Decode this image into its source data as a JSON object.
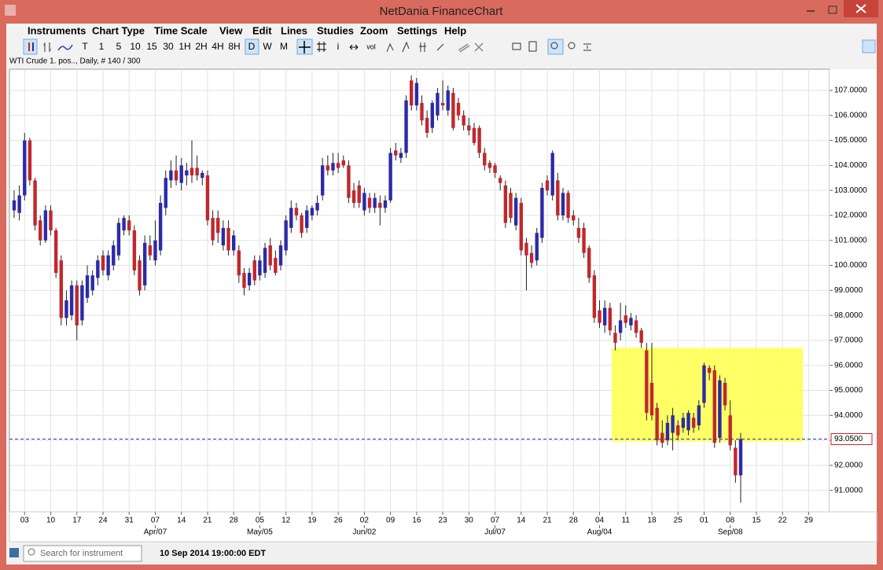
{
  "window": {
    "title": "NetDania FinanceChart"
  },
  "menu": [
    "Instruments",
    "Chart Type",
    "Time Scale",
    "View",
    "Edit",
    "Lines",
    "Studies",
    "Zoom",
    "Settings",
    "Help"
  ],
  "toolbar": {
    "timescale": [
      "T",
      "1",
      "5",
      "10",
      "15",
      "30",
      "1H",
      "2H",
      "4H",
      "8H",
      "D",
      "W",
      "M"
    ],
    "tools": [
      "i",
      "vol"
    ]
  },
  "chart_info": "WTI Crude 1. pos.., Daily, # 140 / 300",
  "search_placeholder": "Search for instrument",
  "status": "10 Sep 2014 19:00:00 EDT",
  "chart_data": {
    "type": "candlestick",
    "up_color": "#2b2ba8",
    "down_color": "#c0282c",
    "grid": true,
    "xlim": [
      -0.9,
      156
    ],
    "ylim": [
      90.14,
      107.85
    ],
    "yticks": [
      {
        "value": 91,
        "label": "91.0000"
      },
      {
        "value": 92,
        "label": "92.0000"
      },
      {
        "value": 93,
        "label": "93.0000"
      },
      {
        "value": 94,
        "label": "94.0000"
      },
      {
        "value": 95,
        "label": "95.0000"
      },
      {
        "value": 96,
        "label": "96.0000"
      },
      {
        "value": 97,
        "label": "97.0000"
      },
      {
        "value": 98,
        "label": "98.0000"
      },
      {
        "value": 99,
        "label": "99.0000"
      },
      {
        "value": 100,
        "label": "100.0000"
      },
      {
        "value": 101,
        "label": "101.0000"
      },
      {
        "value": 102,
        "label": "102.0000"
      },
      {
        "value": 103,
        "label": "103.0000"
      },
      {
        "value": 104,
        "label": "104.0000"
      },
      {
        "value": 105,
        "label": "105.0000"
      },
      {
        "value": 106,
        "label": "106.0000"
      },
      {
        "value": 107,
        "label": "107.0000"
      }
    ],
    "xticks": [
      {
        "value": 2,
        "label": "03"
      },
      {
        "value": 7,
        "label": "10"
      },
      {
        "value": 12,
        "label": "17"
      },
      {
        "value": 17,
        "label": "24"
      },
      {
        "value": 22,
        "label": "31"
      },
      {
        "value": 27,
        "label": "07"
      },
      {
        "value": 32,
        "label": "14"
      },
      {
        "value": 37,
        "label": "21"
      },
      {
        "value": 42,
        "label": "28"
      },
      {
        "value": 47,
        "label": "05"
      },
      {
        "value": 52,
        "label": "12"
      },
      {
        "value": 57,
        "label": "19"
      },
      {
        "value": 62,
        "label": "26"
      },
      {
        "value": 67,
        "label": "02"
      },
      {
        "value": 72,
        "label": "09"
      },
      {
        "value": 77,
        "label": "16"
      },
      {
        "value": 82,
        "label": "23"
      },
      {
        "value": 87,
        "label": "30"
      },
      {
        "value": 92,
        "label": "07"
      },
      {
        "value": 97,
        "label": "14"
      },
      {
        "value": 102,
        "label": "21"
      },
      {
        "value": 107,
        "label": "28"
      },
      {
        "value": 112,
        "label": "04"
      },
      {
        "value": 117,
        "label": "11"
      },
      {
        "value": 122,
        "label": "18"
      },
      {
        "value": 127,
        "label": "25"
      },
      {
        "value": 132,
        "label": "01"
      },
      {
        "value": 137,
        "label": "08"
      },
      {
        "value": 142,
        "label": "15"
      },
      {
        "value": 147,
        "label": "22"
      },
      {
        "value": 152,
        "label": "29"
      }
    ],
    "month_ticks": [
      {
        "value": 27,
        "label": "Apr/07"
      },
      {
        "value": 47,
        "label": "May/05"
      },
      {
        "value": 67,
        "label": "Jun/02"
      },
      {
        "value": 92,
        "label": "Jul/07"
      },
      {
        "value": 112,
        "label": "Aug/04"
      },
      {
        "value": 137,
        "label": "Sep/08"
      }
    ],
    "last_price": {
      "value": 93.05,
      "label": "93.0500"
    },
    "highlight": {
      "xlim": [
        114.3,
        150.9
      ],
      "ylim": [
        92.95,
        96.7
      ]
    },
    "ohlc": [
      [
        102.2,
        103.0,
        101.9,
        102.6
      ],
      [
        102.1,
        103.2,
        101.8,
        102.8
      ],
      [
        102.8,
        105.3,
        102.6,
        105.0
      ],
      [
        105.0,
        105.1,
        103.2,
        103.4
      ],
      [
        103.4,
        103.5,
        101.4,
        101.6
      ],
      [
        101.8,
        102.0,
        100.8,
        101.0
      ],
      [
        101.0,
        102.4,
        100.9,
        102.2
      ],
      [
        102.2,
        102.4,
        101.2,
        101.4
      ],
      [
        101.4,
        101.5,
        99.5,
        99.7
      ],
      [
        100.2,
        100.4,
        97.6,
        97.9
      ],
      [
        97.9,
        99.0,
        97.6,
        98.6
      ],
      [
        98.0,
        99.4,
        97.8,
        99.2
      ],
      [
        99.2,
        99.4,
        97.0,
        97.6
      ],
      [
        97.8,
        99.4,
        97.6,
        99.2
      ],
      [
        98.7,
        100.0,
        98.5,
        99.6
      ],
      [
        99.0,
        99.8,
        98.8,
        99.6
      ],
      [
        99.5,
        100.4,
        99.2,
        100.2
      ],
      [
        100.4,
        100.6,
        99.6,
        99.8
      ],
      [
        99.6,
        100.6,
        99.4,
        100.4
      ],
      [
        100.0,
        101.0,
        99.8,
        100.8
      ],
      [
        100.4,
        101.9,
        100.2,
        101.7
      ],
      [
        101.4,
        102.0,
        101.2,
        101.9
      ],
      [
        101.8,
        102.0,
        101.2,
        101.4
      ],
      [
        101.4,
        101.6,
        99.6,
        99.8
      ],
      [
        100.2,
        100.4,
        98.8,
        99.0
      ],
      [
        99.2,
        101.2,
        99.0,
        100.9
      ],
      [
        100.8,
        101.2,
        100.2,
        100.4
      ],
      [
        100.2,
        101.8,
        100.0,
        101.0
      ],
      [
        100.6,
        102.8,
        100.4,
        102.5
      ],
      [
        102.3,
        103.8,
        102.0,
        103.5
      ],
      [
        103.4,
        104.2,
        103.1,
        103.8
      ],
      [
        103.8,
        104.4,
        103.2,
        103.4
      ],
      [
        103.3,
        104.3,
        103.0,
        104.0
      ],
      [
        103.6,
        104.1,
        103.2,
        103.8
      ],
      [
        103.9,
        105.0,
        103.3,
        103.6
      ],
      [
        103.9,
        104.4,
        103.4,
        103.6
      ],
      [
        103.5,
        103.8,
        103.2,
        103.7
      ],
      [
        103.6,
        103.8,
        101.6,
        101.8
      ],
      [
        101.9,
        102.2,
        100.8,
        101.0
      ],
      [
        101.9,
        102.2,
        100.9,
        101.3
      ],
      [
        100.8,
        101.8,
        100.6,
        101.5
      ],
      [
        101.5,
        101.8,
        100.4,
        100.6
      ],
      [
        100.6,
        101.4,
        100.4,
        101.2
      ],
      [
        100.6,
        100.8,
        99.3,
        99.6
      ],
      [
        99.7,
        99.9,
        98.8,
        99.1
      ],
      [
        99.2,
        99.9,
        99.0,
        99.7
      ],
      [
        100.2,
        100.4,
        99.2,
        99.4
      ],
      [
        99.6,
        100.4,
        99.4,
        100.2
      ],
      [
        99.7,
        100.9,
        99.5,
        100.7
      ],
      [
        100.8,
        101.1,
        99.8,
        100.0
      ],
      [
        100.3,
        100.6,
        99.6,
        99.7
      ],
      [
        100.0,
        101.0,
        99.8,
        100.8
      ],
      [
        100.6,
        102.0,
        100.4,
        101.8
      ],
      [
        101.5,
        102.6,
        101.3,
        102.3
      ],
      [
        102.3,
        102.5,
        101.8,
        102.0
      ],
      [
        102.0,
        102.1,
        101.1,
        101.3
      ],
      [
        101.5,
        102.4,
        101.3,
        102.2
      ],
      [
        102.0,
        102.4,
        101.8,
        102.3
      ],
      [
        102.2,
        102.8,
        102.0,
        102.5
      ],
      [
        102.8,
        104.3,
        102.6,
        104.0
      ],
      [
        104.0,
        104.4,
        103.6,
        103.8
      ],
      [
        103.8,
        104.5,
        103.6,
        104.1
      ],
      [
        104.1,
        104.5,
        103.7,
        103.9
      ],
      [
        104.2,
        104.4,
        103.9,
        104.0
      ],
      [
        104.0,
        104.2,
        102.5,
        102.7
      ],
      [
        103.0,
        103.3,
        102.3,
        102.5
      ],
      [
        103.2,
        103.4,
        102.3,
        102.5
      ],
      [
        102.2,
        103.1,
        102.0,
        102.9
      ],
      [
        102.7,
        102.9,
        102.1,
        102.3
      ],
      [
        102.3,
        102.9,
        102.1,
        102.7
      ],
      [
        102.5,
        102.8,
        101.6,
        102.3
      ],
      [
        102.3,
        102.8,
        102.1,
        102.6
      ],
      [
        102.6,
        104.7,
        102.5,
        104.5
      ],
      [
        104.6,
        104.9,
        104.2,
        104.4
      ],
      [
        104.3,
        104.7,
        104.1,
        104.5
      ],
      [
        104.5,
        106.8,
        104.3,
        106.6
      ],
      [
        107.4,
        107.6,
        106.2,
        106.4
      ],
      [
        106.4,
        107.5,
        106.2,
        107.3
      ],
      [
        106.5,
        106.8,
        105.6,
        105.8
      ],
      [
        105.9,
        106.2,
        105.1,
        105.3
      ],
      [
        105.5,
        106.6,
        105.3,
        106.5
      ],
      [
        106.0,
        107.1,
        105.8,
        106.9
      ],
      [
        106.5,
        107.4,
        106.2,
        106.4
      ],
      [
        106.2,
        107.2,
        106.0,
        107.0
      ],
      [
        106.9,
        107.1,
        105.4,
        105.5
      ],
      [
        106.5,
        106.7,
        105.8,
        106.0
      ],
      [
        106.0,
        106.2,
        105.4,
        105.6
      ],
      [
        105.6,
        105.9,
        105.2,
        105.4
      ],
      [
        105.5,
        105.7,
        104.8,
        104.9
      ],
      [
        105.5,
        105.6,
        104.3,
        104.5
      ],
      [
        104.5,
        104.7,
        103.8,
        104.0
      ],
      [
        104.1,
        104.2,
        103.7,
        103.9
      ],
      [
        104.0,
        104.1,
        103.5,
        103.7
      ],
      [
        103.5,
        103.6,
        103.0,
        103.3
      ],
      [
        103.2,
        103.4,
        101.5,
        101.7
      ],
      [
        102.9,
        103.1,
        101.7,
        101.9
      ],
      [
        101.6,
        102.9,
        101.4,
        102.7
      ],
      [
        102.5,
        102.7,
        100.4,
        100.6
      ],
      [
        100.9,
        101.1,
        99.0,
        100.4
      ],
      [
        100.5,
        100.8,
        99.9,
        100.1
      ],
      [
        100.2,
        101.5,
        100.0,
        101.3
      ],
      [
        101.1,
        103.3,
        100.9,
        103.1
      ],
      [
        103.4,
        103.6,
        102.8,
        103.0
      ],
      [
        102.8,
        104.6,
        102.6,
        104.5
      ],
      [
        103.4,
        103.7,
        101.8,
        102.0
      ],
      [
        102.0,
        103.1,
        101.8,
        102.9
      ],
      [
        102.9,
        103.0,
        101.7,
        101.9
      ],
      [
        102.0,
        102.2,
        101.6,
        101.8
      ],
      [
        101.5,
        101.9,
        100.9,
        101.1
      ],
      [
        101.5,
        101.7,
        100.3,
        100.5
      ],
      [
        100.7,
        100.8,
        99.3,
        99.5
      ],
      [
        99.6,
        99.8,
        97.7,
        97.9
      ],
      [
        98.2,
        98.6,
        97.5,
        97.7
      ],
      [
        97.6,
        98.6,
        97.3,
        98.3
      ],
      [
        98.3,
        98.5,
        97.2,
        97.4
      ],
      [
        97.3,
        97.6,
        96.6,
        96.9
      ],
      [
        97.3,
        98.5,
        97.0,
        97.8
      ],
      [
        98.0,
        98.4,
        97.5,
        97.7
      ],
      [
        97.6,
        98.1,
        97.4,
        97.9
      ],
      [
        97.8,
        98.0,
        97.1,
        97.3
      ],
      [
        97.4,
        97.5,
        96.7,
        96.9
      ],
      [
        96.6,
        96.9,
        93.8,
        94.1
      ],
      [
        95.3,
        96.9,
        93.8,
        94.0
      ],
      [
        94.3,
        94.5,
        92.8,
        93.0
      ],
      [
        93.3,
        93.8,
        92.7,
        92.9
      ],
      [
        93.0,
        94.0,
        92.8,
        93.7
      ],
      [
        93.3,
        94.3,
        92.6,
        94.0
      ],
      [
        93.6,
        93.8,
        93.0,
        93.2
      ],
      [
        93.5,
        94.1,
        93.3,
        93.9
      ],
      [
        93.4,
        94.2,
        93.2,
        94.1
      ],
      [
        93.9,
        94.1,
        93.3,
        93.5
      ],
      [
        93.6,
        94.6,
        93.4,
        94.4
      ],
      [
        94.5,
        96.1,
        94.3,
        96.0
      ],
      [
        95.9,
        96.0,
        95.4,
        95.7
      ],
      [
        95.8,
        96.0,
        92.7,
        92.9
      ],
      [
        93.1,
        95.6,
        92.9,
        95.4
      ],
      [
        95.3,
        95.5,
        94.2,
        94.4
      ],
      [
        94.0,
        94.6,
        92.6,
        92.8
      ],
      [
        92.7,
        93.0,
        91.3,
        91.6
      ],
      [
        91.6,
        93.3,
        90.5,
        93.05
      ]
    ]
  }
}
